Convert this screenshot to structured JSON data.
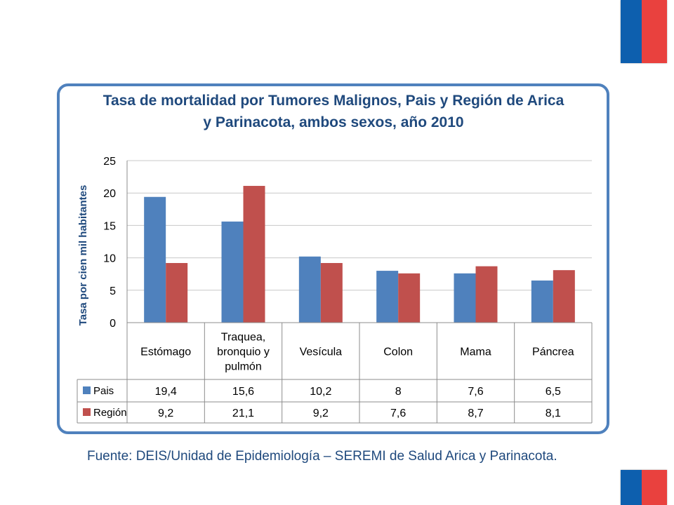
{
  "title": "Tasa de mortalidad por Tumores Malignos, Pais y Región de Arica y Parinacota, ambos sexos, año 2010",
  "source": "Fuente: DEIS/Unidad de Epidemiología – SEREMI de Salud Arica y Parinacota.",
  "colors": {
    "pais": "#4f81bd",
    "region": "#c0504d",
    "frame": "#4f81bd",
    "title": "#1f497d",
    "flag_blue": "#0d5fae",
    "flag_red": "#e9413e"
  },
  "chart_data": {
    "type": "bar",
    "title": "Tasa de mortalidad por Tumores Malignos, Pais y Región de Arica y Parinacota, ambos sexos, año 2010",
    "ylabel": "Tasa por cien mil habitantes",
    "xlabel": "",
    "ylim": [
      0,
      25
    ],
    "yticks": [
      0,
      5,
      10,
      15,
      20,
      25
    ],
    "grid": true,
    "legend": "data-table",
    "categories": [
      [
        "Estómago"
      ],
      [
        "Traquea,",
        "bronquio y",
        "pulmón"
      ],
      [
        "Vesícula"
      ],
      [
        "Colon"
      ],
      [
        "Mama"
      ],
      [
        "Páncrea"
      ]
    ],
    "series": [
      {
        "name": "Pais",
        "values": [
          19.4,
          15.6,
          10.2,
          8,
          7.6,
          6.5
        ],
        "labels": [
          "19,4",
          "15,6",
          "10,2",
          "8",
          "7,6",
          "6,5"
        ]
      },
      {
        "name": "Región",
        "values": [
          9.2,
          21.1,
          9.2,
          7.6,
          8.7,
          8.1
        ],
        "labels": [
          "9,2",
          "21,1",
          "9,2",
          "7,6",
          "8,7",
          "8,1"
        ]
      }
    ]
  }
}
